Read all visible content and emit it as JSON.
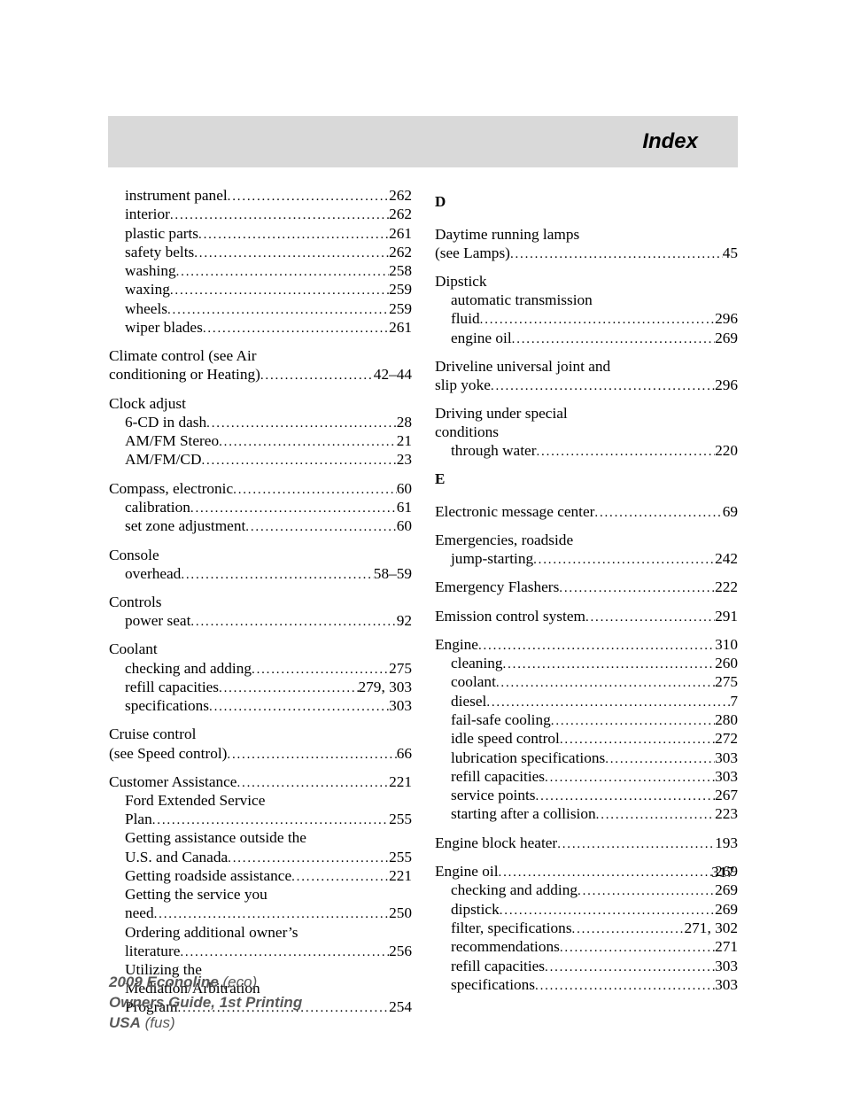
{
  "header": {
    "title": "Index"
  },
  "page_number": "317",
  "footer": {
    "line1_bold": "2009 Econoline",
    "line1_ital": "(eco)",
    "line2_bold": "Owners Guide, 1st Printing",
    "line3_bold": "USA",
    "line3_ital": "(fus)"
  },
  "left": [
    {
      "type": "group",
      "rows": [
        {
          "label": "instrument panel",
          "pg": "262",
          "indent": 1
        },
        {
          "label": "interior",
          "pg": "262",
          "indent": 1
        },
        {
          "label": "plastic parts",
          "pg": "261",
          "indent": 1
        },
        {
          "label": "safety belts",
          "pg": "262",
          "indent": 1
        },
        {
          "label": "washing",
          "pg": "258",
          "indent": 1
        },
        {
          "label": "waxing",
          "pg": "259",
          "indent": 1
        },
        {
          "label": "wheels",
          "pg": "259",
          "indent": 1
        },
        {
          "label": "wiper blades",
          "pg": "261",
          "indent": 1
        }
      ]
    },
    {
      "type": "group",
      "rows": [
        {
          "label": "Climate control (see Air",
          "pg": "",
          "indent": 0,
          "nodots": true
        },
        {
          "label": "conditioning or Heating)",
          "pg": "42–44",
          "indent": 0
        }
      ]
    },
    {
      "type": "group",
      "rows": [
        {
          "label": "Clock adjust",
          "pg": "",
          "indent": 0,
          "nodots": true
        },
        {
          "label": "6-CD in dash",
          "pg": "28",
          "indent": 1
        },
        {
          "label": "AM/FM Stereo",
          "pg": "21",
          "indent": 1
        },
        {
          "label": "AM/FM/CD",
          "pg": "23",
          "indent": 1
        }
      ]
    },
    {
      "type": "group",
      "rows": [
        {
          "label": "Compass, electronic",
          "pg": "60",
          "indent": 0
        },
        {
          "label": "calibration",
          "pg": "61",
          "indent": 1
        },
        {
          "label": "set zone adjustment",
          "pg": "60",
          "indent": 1
        }
      ]
    },
    {
      "type": "group",
      "rows": [
        {
          "label": "Console",
          "pg": "",
          "indent": 0,
          "nodots": true
        },
        {
          "label": "overhead",
          "pg": "58–59",
          "indent": 1
        }
      ]
    },
    {
      "type": "group",
      "rows": [
        {
          "label": "Controls",
          "pg": "",
          "indent": 0,
          "nodots": true
        },
        {
          "label": "power seat",
          "pg": "92",
          "indent": 1
        }
      ]
    },
    {
      "type": "group",
      "rows": [
        {
          "label": "Coolant",
          "pg": "",
          "indent": 0,
          "nodots": true
        },
        {
          "label": "checking and adding",
          "pg": "275",
          "indent": 1
        },
        {
          "label": "refill capacities",
          "pg": "279, 303",
          "indent": 1
        },
        {
          "label": "specifications",
          "pg": "303",
          "indent": 1
        }
      ]
    },
    {
      "type": "group",
      "rows": [
        {
          "label": "Cruise control",
          "pg": "",
          "indent": 0,
          "nodots": true
        },
        {
          "label": "(see Speed control)",
          "pg": "66",
          "indent": 0
        }
      ]
    },
    {
      "type": "group",
      "rows": [
        {
          "label": "Customer Assistance",
          "pg": "221",
          "indent": 0
        },
        {
          "label": "Ford Extended Service",
          "pg": "",
          "indent": 1,
          "nodots": true
        },
        {
          "label": "Plan",
          "pg": "255",
          "indent": 1
        },
        {
          "label": "Getting assistance outside the",
          "pg": "",
          "indent": 1,
          "nodots": true
        },
        {
          "label": "U.S. and Canada",
          "pg": "255",
          "indent": 1
        },
        {
          "label": "Getting roadside assistance",
          "pg": "221",
          "indent": 1,
          "tight": true
        },
        {
          "label": "Getting the service you",
          "pg": "",
          "indent": 1,
          "nodots": true
        },
        {
          "label": "need",
          "pg": "250",
          "indent": 1
        },
        {
          "label": "Ordering additional owner’s",
          "pg": "",
          "indent": 1,
          "nodots": true
        },
        {
          "label": "literature",
          "pg": "256",
          "indent": 1
        },
        {
          "label": "Utilizing the",
          "pg": "",
          "indent": 1,
          "nodots": true
        },
        {
          "label": "Mediation/Arbitration",
          "pg": "",
          "indent": 1,
          "nodots": true
        },
        {
          "label": "Program",
          "pg": "254",
          "indent": 1
        }
      ]
    }
  ],
  "right": [
    {
      "type": "letter",
      "text": "D"
    },
    {
      "type": "group",
      "rows": [
        {
          "label": "Daytime running lamps",
          "pg": "",
          "indent": 0,
          "nodots": true
        },
        {
          "label": "(see Lamps)",
          "pg": "45",
          "indent": 0
        }
      ]
    },
    {
      "type": "group",
      "rows": [
        {
          "label": "Dipstick",
          "pg": "",
          "indent": 0,
          "nodots": true
        },
        {
          "label": "automatic transmission",
          "pg": "",
          "indent": 1,
          "nodots": true
        },
        {
          "label": "fluid",
          "pg": "296",
          "indent": 1
        },
        {
          "label": "engine oil",
          "pg": "269",
          "indent": 1
        }
      ]
    },
    {
      "type": "group",
      "rows": [
        {
          "label": "Driveline universal joint and",
          "pg": "",
          "indent": 0,
          "nodots": true
        },
        {
          "label": "slip yoke",
          "pg": "296",
          "indent": 0
        }
      ]
    },
    {
      "type": "group",
      "rows": [
        {
          "label": "Driving under special",
          "pg": "",
          "indent": 0,
          "nodots": true
        },
        {
          "label": "conditions",
          "pg": "",
          "indent": 0,
          "nodots": true
        },
        {
          "label": "through water",
          "pg": "220",
          "indent": 1
        }
      ]
    },
    {
      "type": "letter",
      "text": "E"
    },
    {
      "type": "group",
      "rows": [
        {
          "label": "Electronic message center",
          "pg": "69",
          "indent": 0
        }
      ]
    },
    {
      "type": "group",
      "rows": [
        {
          "label": "Emergencies, roadside",
          "pg": "",
          "indent": 0,
          "nodots": true
        },
        {
          "label": "jump-starting",
          "pg": "242",
          "indent": 1
        }
      ]
    },
    {
      "type": "group",
      "rows": [
        {
          "label": "Emergency Flashers",
          "pg": "222",
          "indent": 0
        }
      ]
    },
    {
      "type": "group",
      "rows": [
        {
          "label": "Emission control system",
          "pg": "291",
          "indent": 0
        }
      ]
    },
    {
      "type": "group",
      "rows": [
        {
          "label": "Engine",
          "pg": "310",
          "indent": 0
        },
        {
          "label": "cleaning",
          "pg": "260",
          "indent": 1
        },
        {
          "label": "coolant",
          "pg": "275",
          "indent": 1
        },
        {
          "label": "diesel",
          "pg": "7",
          "indent": 1
        },
        {
          "label": "fail-safe cooling",
          "pg": "280",
          "indent": 1
        },
        {
          "label": "idle speed control",
          "pg": "272",
          "indent": 1
        },
        {
          "label": "lubrication specifications",
          "pg": "303",
          "indent": 1
        },
        {
          "label": "refill capacities",
          "pg": "303",
          "indent": 1
        },
        {
          "label": "service points",
          "pg": "267",
          "indent": 1
        },
        {
          "label": "starting after a collision",
          "pg": "223",
          "indent": 1
        }
      ]
    },
    {
      "type": "group",
      "rows": [
        {
          "label": "Engine block heater",
          "pg": "193",
          "indent": 0
        }
      ]
    },
    {
      "type": "group",
      "rows": [
        {
          "label": "Engine oil",
          "pg": "269",
          "indent": 0
        },
        {
          "label": "checking and adding",
          "pg": "269",
          "indent": 1
        },
        {
          "label": "dipstick",
          "pg": "269",
          "indent": 1
        },
        {
          "label": "filter, specifications",
          "pg": "271, 302",
          "indent": 1
        },
        {
          "label": "recommendations",
          "pg": "271",
          "indent": 1
        },
        {
          "label": "refill capacities",
          "pg": "303",
          "indent": 1
        },
        {
          "label": "specifications",
          "pg": "303",
          "indent": 1
        }
      ]
    }
  ]
}
